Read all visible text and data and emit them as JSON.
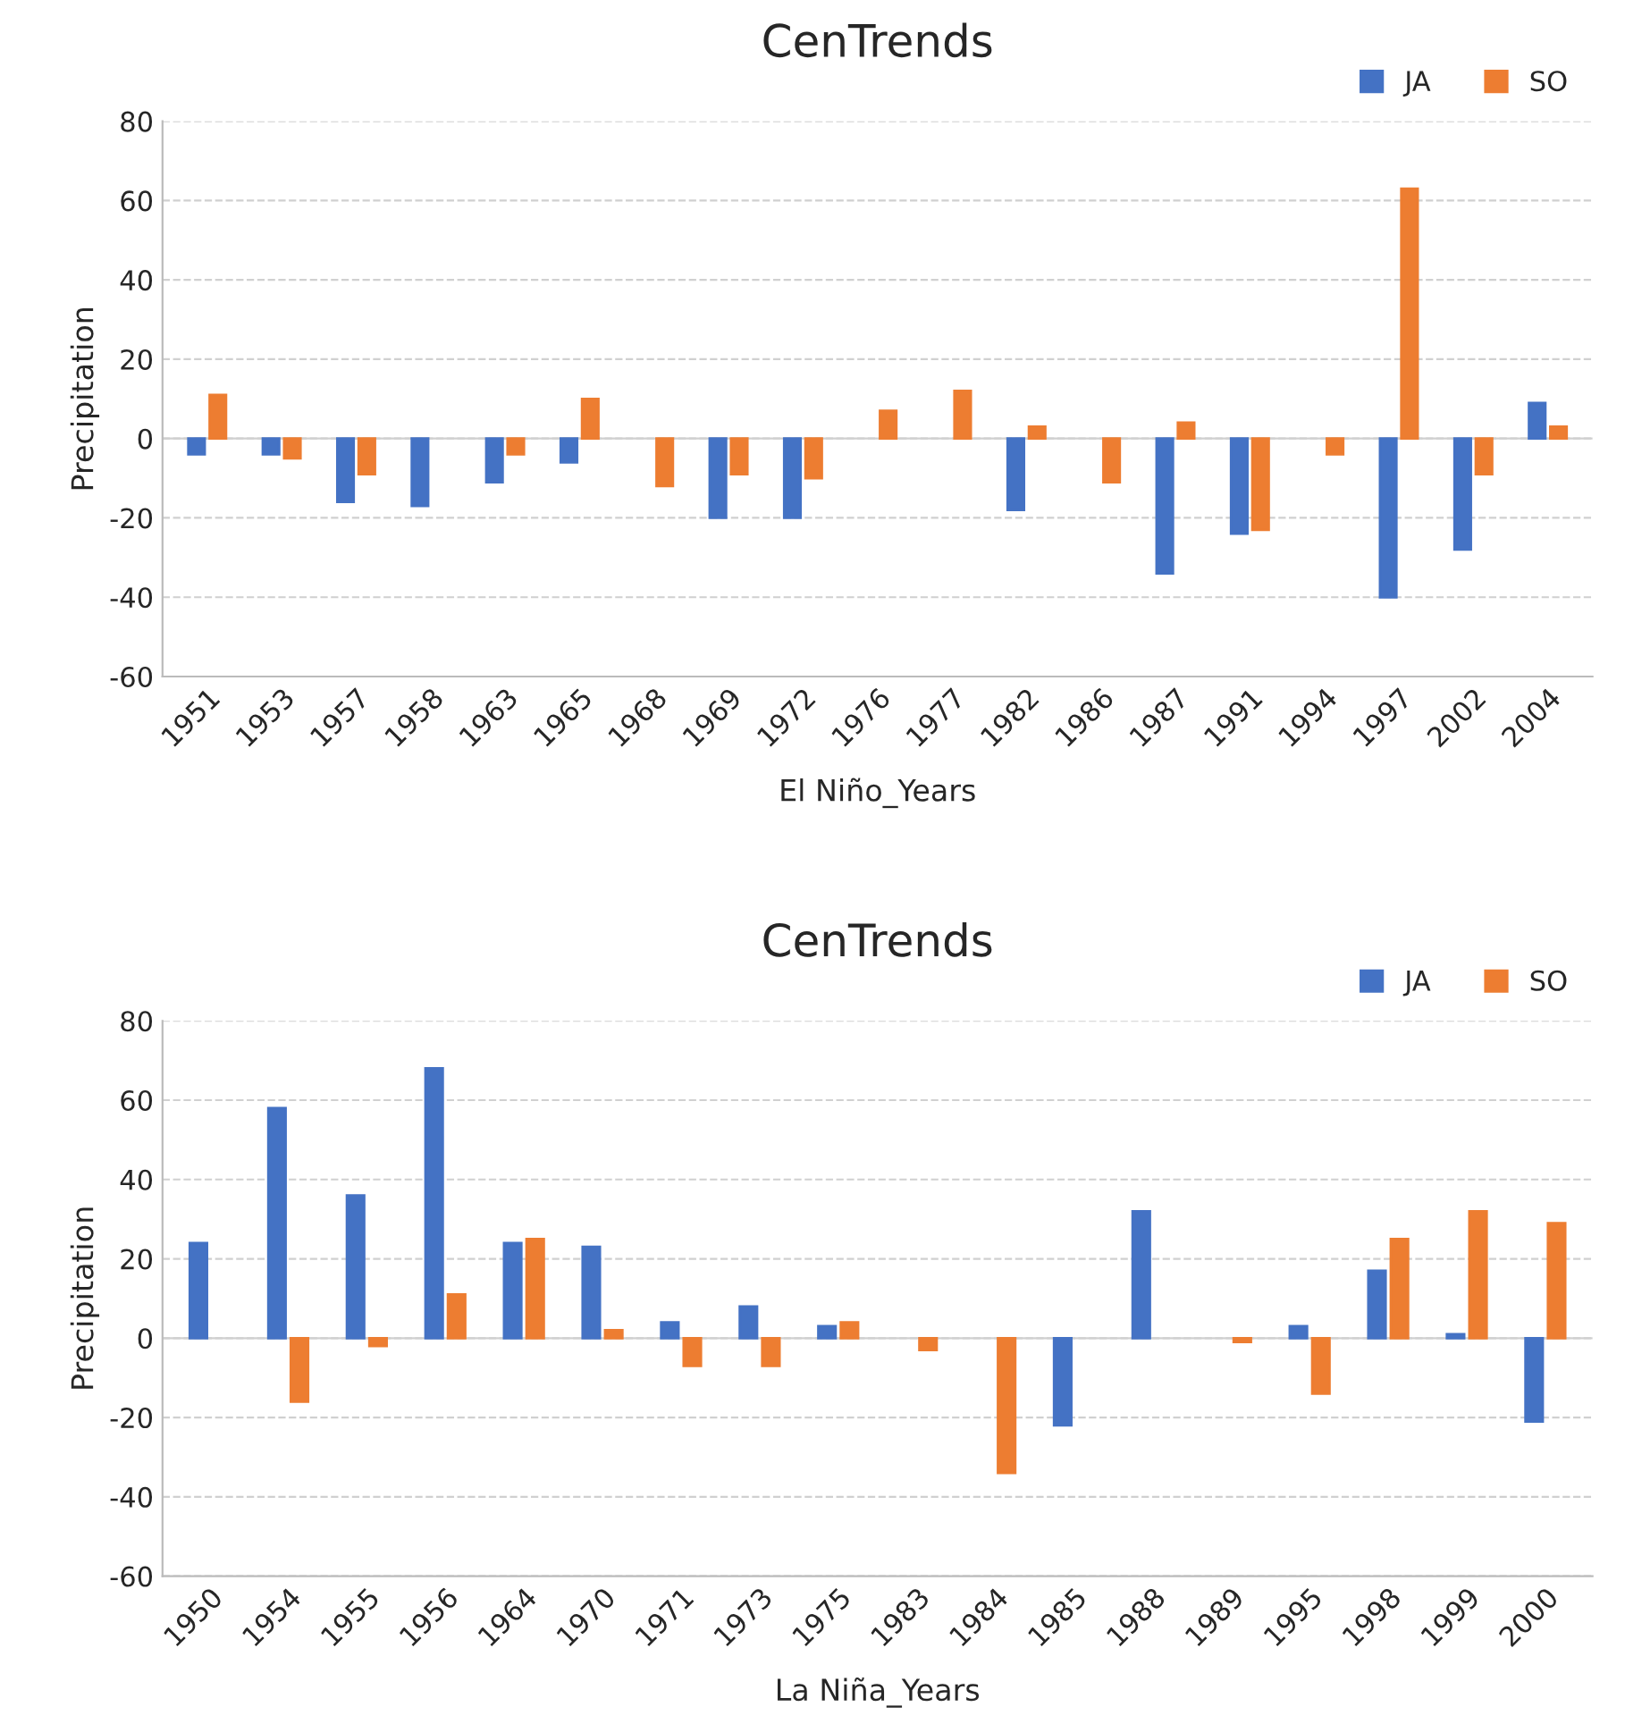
{
  "chart_data": [
    {
      "type": "bar",
      "title": "CenTrends",
      "xlabel": "El Niño_Years",
      "ylabel": "Precipitation",
      "categories": [
        "1951",
        "1953",
        "1957",
        "1958",
        "1963",
        "1965",
        "1968",
        "1969",
        "1972",
        "1976",
        "1977",
        "1982",
        "1986",
        "1987",
        "1991",
        "1994",
        "1997",
        "2002",
        "2004"
      ],
      "series": [
        {
          "name": "JA",
          "color": "#4472c4",
          "values": [
            -4,
            -4,
            -16,
            -17,
            -11,
            -6,
            null,
            -20,
            -20,
            null,
            null,
            -18,
            null,
            -34,
            -24,
            null,
            -40,
            -28,
            9
          ]
        },
        {
          "name": "SO",
          "color": "#ed7d31",
          "values": [
            11,
            -5,
            -9,
            null,
            -4,
            10,
            -12,
            -9,
            -10,
            7,
            12,
            3,
            -11,
            4,
            -23,
            -4,
            63,
            -9,
            3
          ]
        }
      ],
      "ylim": [
        -60,
        80
      ],
      "yticks": [
        -60,
        -40,
        -20,
        0,
        20,
        40,
        60,
        80
      ],
      "grid": "y",
      "legend": "top right"
    },
    {
      "type": "bar",
      "title": "CenTrends",
      "xlabel": "La Niña_Years",
      "ylabel": "Precipitation",
      "categories": [
        "1950",
        "1954",
        "1955",
        "1956",
        "1964",
        "1970",
        "1971",
        "1973",
        "1975",
        "1983",
        "1984",
        "1985",
        "1988",
        "1989",
        "1995",
        "1998",
        "1999",
        "2000"
      ],
      "series": [
        {
          "name": "JA",
          "color": "#4472c4",
          "values": [
            24,
            58,
            36,
            68,
            24,
            23,
            4,
            8,
            3,
            null,
            null,
            -22,
            32,
            null,
            3,
            17,
            1,
            -21
          ]
        },
        {
          "name": "SO",
          "color": "#ed7d31",
          "values": [
            null,
            -16,
            -2,
            11,
            25,
            2,
            -7,
            -7,
            4,
            -3,
            -34,
            null,
            null,
            -1,
            -14,
            25,
            32,
            29
          ]
        }
      ],
      "ylim": [
        -60,
        80
      ],
      "yticks": [
        -60,
        -40,
        -20,
        0,
        20,
        40,
        60,
        80
      ],
      "grid": "y",
      "legend": "top right"
    }
  ]
}
